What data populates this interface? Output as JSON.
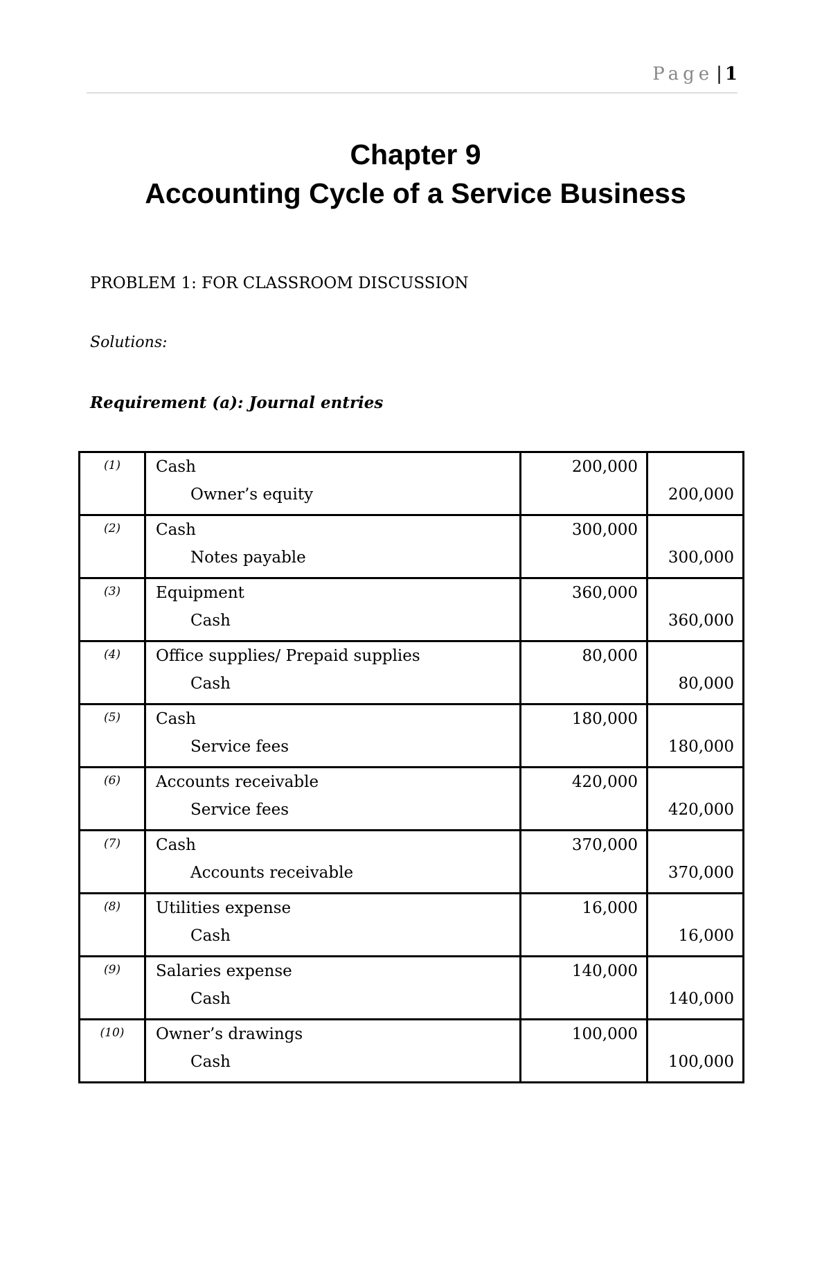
{
  "header": {
    "page_label": "Page",
    "page_number": "1"
  },
  "title": {
    "line1": "Chapter 9",
    "line2": "Accounting Cycle of a Service Business"
  },
  "problem_heading": "PROBLEM 1: FOR CLASSROOM DISCUSSION",
  "solutions_label": "Solutions:",
  "requirement_heading": "Requirement (a): Journal entries",
  "journal": [
    {
      "no": "(1)",
      "debit_account": "Cash",
      "credit_account": "Owner’s equity",
      "debit": "200,000",
      "credit": "200,000"
    },
    {
      "no": "(2)",
      "debit_account": "Cash",
      "credit_account": "Notes payable",
      "debit": "300,000",
      "credit": "300,000"
    },
    {
      "no": "(3)",
      "debit_account": "Equipment",
      "credit_account": "Cash",
      "debit": "360,000",
      "credit": "360,000"
    },
    {
      "no": "(4)",
      "debit_account": "Office supplies/ Prepaid supplies",
      "credit_account": "Cash",
      "debit": "80,000",
      "credit": "80,000"
    },
    {
      "no": "(5)",
      "debit_account": "Cash",
      "credit_account": "Service fees",
      "debit": "180,000",
      "credit": "180,000"
    },
    {
      "no": "(6)",
      "debit_account": "Accounts receivable",
      "credit_account": "Service fees",
      "debit": "420,000",
      "credit": "420,000"
    },
    {
      "no": "(7)",
      "debit_account": "Cash",
      "credit_account": "Accounts receivable",
      "debit": "370,000",
      "credit": "370,000"
    },
    {
      "no": "(8)",
      "debit_account": "Utilities expense",
      "credit_account": "Cash",
      "debit": "16,000",
      "credit": "16,000"
    },
    {
      "no": "(9)",
      "debit_account": "Salaries expense",
      "credit_account": "Cash",
      "debit": "140,000",
      "credit": "140,000"
    },
    {
      "no": "(10)",
      "debit_account": "Owner’s drawings",
      "credit_account": "Cash",
      "debit": "100,000",
      "credit": "100,000"
    }
  ]
}
